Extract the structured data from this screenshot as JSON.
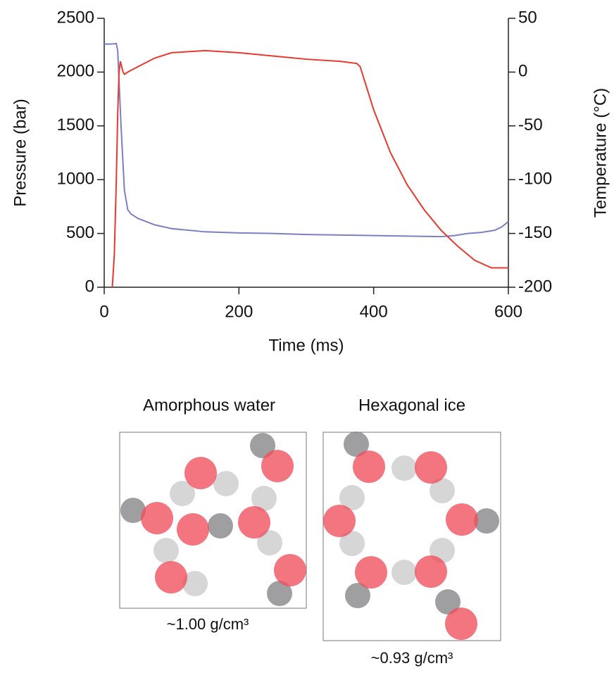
{
  "chart_data": {
    "type": "line",
    "xlabel": "Time (ms)",
    "ylabel": "Pressure (bar)",
    "y2label": "Temperature (°C)",
    "xlim": [
      0,
      600
    ],
    "xticks": [
      0,
      200,
      400,
      600
    ],
    "ylim": [
      0,
      2500
    ],
    "yticks": [
      0,
      500,
      1000,
      1500,
      2000,
      2500
    ],
    "y2lim": [
      -200,
      50
    ],
    "y2ticks": [
      -200,
      -150,
      -100,
      -50,
      0,
      50
    ],
    "series": [
      {
        "color": "#7b7fc4",
        "x": [
          0,
          10,
          18,
          20,
          25,
          30,
          35,
          40,
          50,
          75,
          100,
          150,
          200,
          250,
          300,
          350,
          400,
          450,
          500,
          520,
          540,
          560,
          580,
          590,
          600
        ],
        "values": [
          2260,
          2260,
          2265,
          2200,
          1500,
          900,
          720,
          680,
          640,
          580,
          545,
          515,
          505,
          500,
          490,
          485,
          480,
          475,
          470,
          480,
          500,
          510,
          530,
          560,
          610
        ]
      },
      {
        "color": "#e8392f",
        "axis": "y2",
        "x": [
          12,
          15,
          18,
          20,
          22,
          24,
          26,
          28,
          30,
          35,
          50,
          75,
          100,
          150,
          200,
          250,
          300,
          350,
          375,
          380,
          400,
          425,
          450,
          475,
          500,
          525,
          550,
          575,
          600
        ],
        "values": [
          -200,
          -170,
          -100,
          -40,
          0,
          10,
          5,
          0,
          -2,
          0,
          5,
          13,
          18,
          20,
          18,
          15,
          12,
          10,
          8,
          5,
          -35,
          -75,
          -105,
          -128,
          -147,
          -162,
          -175,
          -182,
          -182
        ]
      }
    ]
  },
  "diagram": {
    "panels": [
      {
        "title": "Amorphous water",
        "label": "~1.00 g/cm³"
      },
      {
        "title": "Hexagonal ice",
        "label": "~0.93 g/cm³"
      }
    ]
  }
}
